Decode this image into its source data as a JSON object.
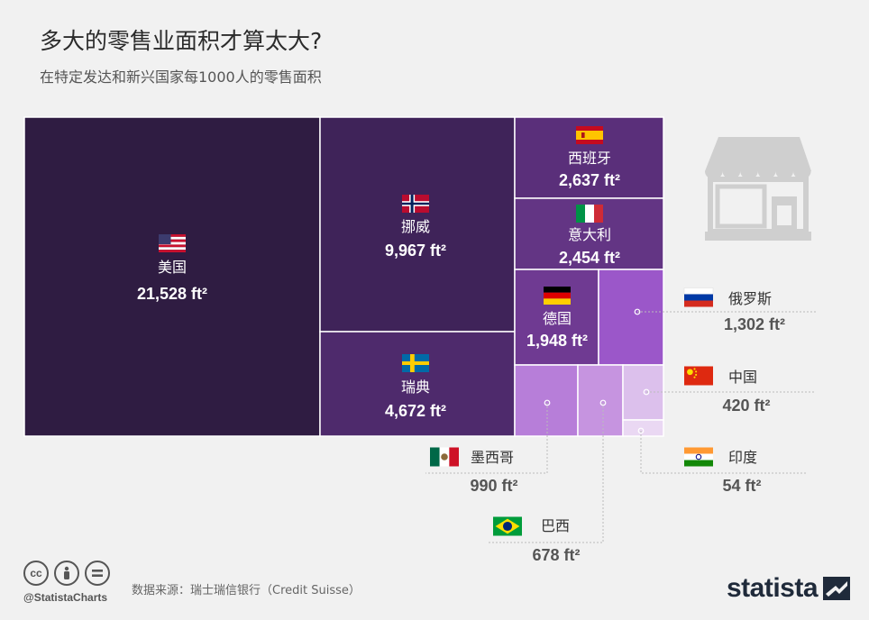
{
  "title": "多大的零售业面积才算太大?",
  "subtitle": "在特定发达和新兴国家每1000人的零售面积",
  "footer": {
    "handle": "@StatistaCharts",
    "source": "数据来源：瑞士瑞信银行（Credit Suisse）",
    "brand": "statista",
    "cc_icons": [
      "cc-icon",
      "by-icon",
      "nd-icon"
    ]
  },
  "colors": {
    "background": "#f1f1f1",
    "usa": "#2f1c42",
    "norway": "#3f2359",
    "sweden": "#4e2a6c",
    "spain": "#5a2f7a",
    "italy": "#633584",
    "germany": "#6f3a92",
    "russia": "#9b57c9",
    "mexico": "#b77ed9",
    "brazil": "#c694e0",
    "china": "#dcc0ec",
    "india": "#ead8f3"
  },
  "chart_data": {
    "type": "treemap",
    "unit": "ft²",
    "items": [
      {
        "id": "usa",
        "name": "美国",
        "value": 21528,
        "label": "21,528 ft²"
      },
      {
        "id": "norway",
        "name": "挪威",
        "value": 9967,
        "label": "9,967 ft²"
      },
      {
        "id": "sweden",
        "name": "瑞典",
        "value": 4672,
        "label": "4,672 ft²"
      },
      {
        "id": "spain",
        "name": "西班牙",
        "value": 2637,
        "label": "2,637 ft²"
      },
      {
        "id": "italy",
        "name": "意大利",
        "value": 2454,
        "label": "2,454 ft²"
      },
      {
        "id": "germany",
        "name": "德国",
        "value": 1948,
        "label": "1,948 ft²"
      },
      {
        "id": "russia",
        "name": "俄罗斯",
        "value": 1302,
        "label": "1,302 ft²"
      },
      {
        "id": "mexico",
        "name": "墨西哥",
        "value": 990,
        "label": "990 ft²"
      },
      {
        "id": "brazil",
        "name": "巴西",
        "value": 678,
        "label": "678 ft²"
      },
      {
        "id": "china",
        "name": "中国",
        "value": 420,
        "label": "420 ft²"
      },
      {
        "id": "india",
        "name": "印度",
        "value": 54,
        "label": "54 ft²"
      }
    ]
  }
}
